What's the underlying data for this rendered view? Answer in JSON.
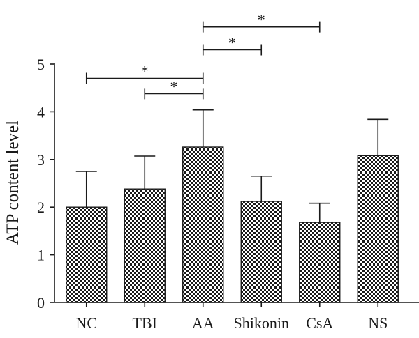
{
  "chart_data": {
    "type": "bar",
    "title": "",
    "xlabel": "",
    "ylabel": "ATP content level",
    "ylim": [
      0,
      5
    ],
    "yticks": [
      "0",
      "1",
      "2",
      "3",
      "4",
      "5"
    ],
    "categories": [
      "NC",
      "TBI",
      "AA",
      "Shikonin",
      "CsA",
      "NS"
    ],
    "values": [
      2.0,
      2.38,
      3.26,
      2.12,
      1.68,
      3.08
    ],
    "error": [
      0.75,
      0.69,
      0.78,
      0.53,
      0.4,
      0.76
    ],
    "bar_fill": "checkerboard",
    "colors": {
      "bar_dark": "#1a1a1a",
      "bar_light": "#ffffff",
      "axis": "#1a1a1a"
    },
    "significance": [
      {
        "from": "NC",
        "to": "AA",
        "level": 4.7,
        "label": "*"
      },
      {
        "from": "TBI",
        "to": "AA",
        "level": 4.38,
        "label": "*"
      },
      {
        "from": "AA",
        "to": "Shikonin",
        "level": 5.3,
        "label": "*"
      },
      {
        "from": "AA",
        "to": "CsA",
        "level": 5.78,
        "label": "*"
      }
    ]
  }
}
